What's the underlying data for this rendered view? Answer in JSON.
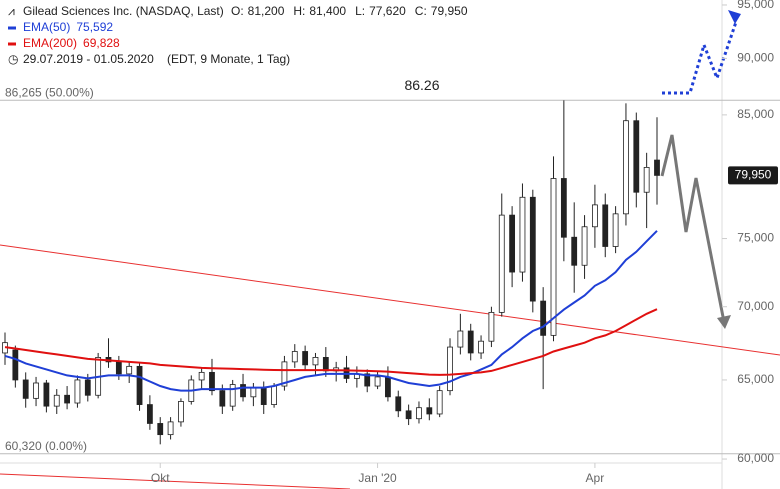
{
  "chart_data": {
    "type": "candlestick",
    "title": "Gilead Sciences Inc. (NASDAQ, Last)",
    "quote": [
      {
        "key": "O:",
        "text": "81,200"
      },
      {
        "key": "H:",
        "text": "81,400"
      },
      {
        "key": "L:",
        "text": "77,620"
      },
      {
        "key": "C:",
        "text": "79,950"
      }
    ],
    "period": "29.07.2019 - 01.05.2020",
    "period_note": "(EDT, 9 Monate, 1 Tag)",
    "log_scale": true,
    "ylim": [
      59760,
      95480
    ],
    "yticks": [
      {
        "value": 60000,
        "label": "60,000"
      },
      {
        "value": 65000,
        "label": "65,000"
      },
      {
        "value": 70000,
        "label": "70,000"
      },
      {
        "value": 75000,
        "label": "75,000"
      },
      {
        "value": 85000,
        "label": "85,000"
      },
      {
        "value": 90000,
        "label": "90,000"
      },
      {
        "value": 95000,
        "label": "95,000"
      }
    ],
    "last_price": {
      "value": 79950,
      "label": "79,950"
    },
    "high_marker": {
      "value": 86260,
      "label": "86.26"
    },
    "levels": [
      {
        "value": 86265,
        "label": "86,265 (50.00%)"
      },
      {
        "value": 60320,
        "label": "60,320 (0.00%)"
      }
    ],
    "categories": [
      null,
      null,
      null,
      null,
      null,
      null,
      null,
      null,
      null,
      null,
      null,
      null,
      null,
      null,
      null,
      "Okt",
      null,
      null,
      null,
      null,
      null,
      null,
      null,
      null,
      null,
      null,
      null,
      null,
      null,
      null,
      null,
      null,
      null,
      null,
      null,
      null,
      "Jan '20",
      null,
      null,
      null,
      null,
      null,
      null,
      null,
      null,
      null,
      null,
      null,
      null,
      null,
      null,
      null,
      null,
      null,
      null,
      null,
      null,
      "Apr",
      null,
      null,
      null,
      null,
      null,
      null
    ],
    "open": [
      66800,
      67000,
      65000,
      63800,
      64800,
      63300,
      64000,
      63500,
      65000,
      64000,
      66500,
      66200,
      65400,
      65900,
      63400,
      62200,
      61500,
      62300,
      63600,
      65000,
      65500,
      64300,
      63300,
      64700,
      63900,
      64500,
      63400,
      64600,
      66200,
      66900,
      66000,
      66500,
      65600,
      65800,
      65100,
      65400,
      64600,
      65200,
      63900,
      63000,
      62500,
      63200,
      62800,
      64300,
      67200,
      68300,
      66800,
      67600,
      69600,
      76800,
      72500,
      78200,
      70400,
      68000,
      79700,
      75100,
      73000,
      75900,
      77600,
      74400,
      76900,
      84500,
      78600,
      81200
    ],
    "high": [
      68200,
      67300,
      65500,
      65200,
      65000,
      64400,
      64600,
      65300,
      65400,
      66800,
      67800,
      66600,
      66200,
      66100,
      64000,
      62600,
      62600,
      63800,
      65300,
      65800,
      66400,
      64700,
      65000,
      65400,
      64800,
      64900,
      64800,
      66600,
      67400,
      67300,
      66800,
      67200,
      66200,
      66600,
      65900,
      65700,
      65600,
      65900,
      64300,
      63400,
      63600,
      63800,
      64600,
      67800,
      69500,
      68800,
      68000,
      70000,
      78500,
      77500,
      79300,
      78800,
      71400,
      81500,
      86260,
      77800,
      76800,
      79200,
      78500,
      77500,
      86000,
      85200,
      81800,
      84800
    ],
    "low": [
      66000,
      64500,
      63200,
      63300,
      62900,
      62800,
      63100,
      63200,
      63600,
      63800,
      65800,
      65000,
      64800,
      63000,
      61800,
      60900,
      61200,
      62000,
      63400,
      64400,
      64000,
      62800,
      63000,
      63600,
      63300,
      62800,
      63200,
      64300,
      65800,
      65600,
      65300,
      65200,
      64900,
      64800,
      64500,
      64200,
      64400,
      63600,
      62600,
      62100,
      62200,
      62400,
      62600,
      64000,
      66700,
      66300,
      66400,
      67200,
      69300,
      71400,
      71800,
      69600,
      64400,
      67600,
      73300,
      71000,
      72000,
      74300,
      73600,
      73900,
      76000,
      77400,
      75800,
      77620
    ],
    "close": [
      67500,
      65000,
      63800,
      64800,
      63300,
      64000,
      63500,
      65000,
      64000,
      66500,
      66200,
      65400,
      65900,
      63400,
      62200,
      61500,
      62300,
      63600,
      65000,
      65500,
      64300,
      63300,
      64700,
      63900,
      64500,
      63400,
      64600,
      66200,
      66900,
      66000,
      66500,
      65600,
      65800,
      65100,
      65400,
      64600,
      65200,
      63900,
      63000,
      62500,
      63200,
      62800,
      64300,
      67200,
      68300,
      66800,
      67600,
      69600,
      76800,
      72500,
      78200,
      70400,
      68000,
      79700,
      75100,
      73000,
      75900,
      77600,
      74400,
      76900,
      84500,
      78600,
      80600,
      79950
    ],
    "series": [
      {
        "name": "EMA(50)",
        "legend_value": "75,592",
        "color": "#1f3fd6",
        "values": [
          66600,
          66400,
          66100,
          65900,
          65700,
          65500,
          65300,
          65200,
          65100,
          65200,
          65300,
          65300,
          65300,
          65200,
          64900,
          64600,
          64400,
          64300,
          64300,
          64400,
          64400,
          64400,
          64400,
          64500,
          64500,
          64500,
          64600,
          64800,
          65000,
          65200,
          65300,
          65400,
          65400,
          65400,
          65400,
          65300,
          65300,
          65200,
          65000,
          64800,
          64700,
          64600,
          64700,
          64900,
          65200,
          65400,
          65700,
          66000,
          66700,
          67200,
          67800,
          68300,
          68600,
          69200,
          69800,
          70300,
          70800,
          71500,
          71900,
          72500,
          73400,
          74000,
          74800,
          75592
        ]
      },
      {
        "name": "EMA(200)",
        "legend_value": "69,828",
        "color": "#e01010",
        "values": [
          67200,
          67100,
          67000,
          66900,
          66800,
          66700,
          66600,
          66500,
          66400,
          66350,
          66300,
          66250,
          66200,
          66150,
          66100,
          66000,
          65950,
          65900,
          65850,
          65800,
          65780,
          65760,
          65740,
          65720,
          65700,
          65680,
          65660,
          65650,
          65650,
          65650,
          65650,
          65650,
          65640,
          65630,
          65620,
          65600,
          65580,
          65550,
          65500,
          65450,
          65400,
          65350,
          65330,
          65350,
          65400,
          65450,
          65500,
          65600,
          65800,
          66000,
          66200,
          66400,
          66600,
          66900,
          67100,
          67300,
          67500,
          67800,
          68000,
          68300,
          68700,
          69100,
          69500,
          69828
        ]
      }
    ]
  }
}
